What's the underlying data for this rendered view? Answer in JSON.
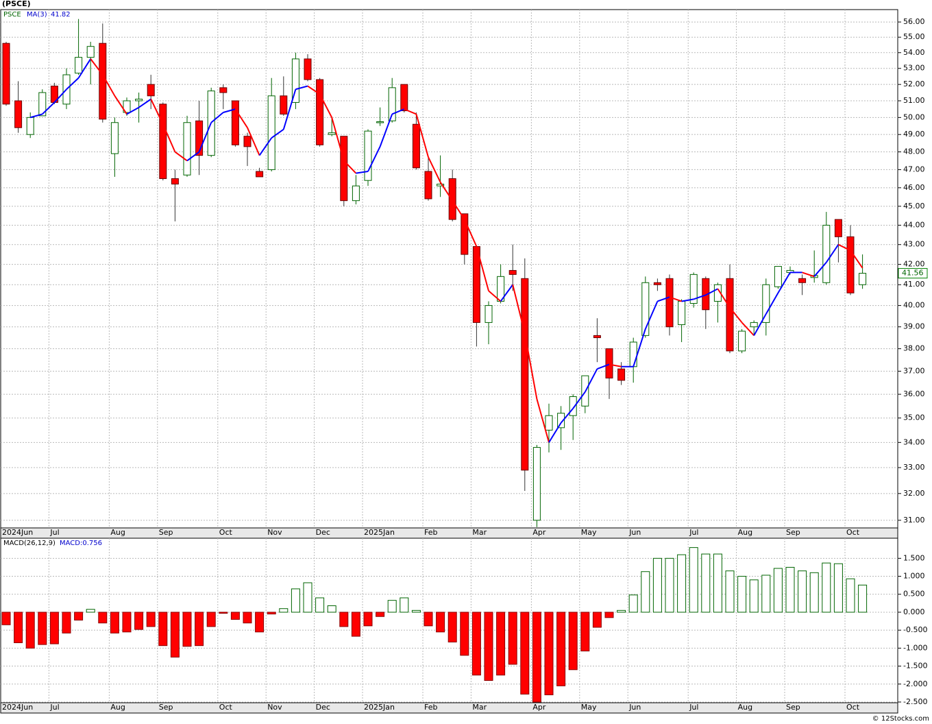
{
  "chart_data": [
    {
      "type": "candlestick",
      "title": "(PSCE)",
      "symbol": "PSCE",
      "log_scale": true,
      "grid": true,
      "up_color": "#006400",
      "down_color": "#ff0000",
      "categories": [
        "2024Jun",
        null,
        null,
        null,
        "Jul",
        null,
        null,
        null,
        null,
        "Aug",
        null,
        null,
        null,
        "Sep",
        null,
        null,
        null,
        null,
        "Oct",
        null,
        null,
        null,
        "Nov",
        null,
        null,
        null,
        "Dec",
        null,
        null,
        null,
        "2025Jan",
        null,
        null,
        null,
        null,
        "Feb",
        null,
        null,
        null,
        "Mar",
        null,
        null,
        null,
        null,
        "Apr",
        null,
        null,
        null,
        "May",
        null,
        null,
        null,
        "Jun",
        null,
        null,
        null,
        null,
        "Jul",
        null,
        null,
        null,
        "Aug",
        null,
        null,
        null,
        "Sep",
        null,
        null,
        null,
        null,
        "Oct",
        null
      ],
      "open": [
        54.6,
        51.0,
        49.0,
        50.1,
        51.9,
        50.8,
        52.7,
        53.7,
        54.6,
        47.9,
        50.3,
        51.0,
        52.0,
        50.8,
        46.5,
        46.7,
        49.8,
        47.8,
        51.8,
        51.0,
        48.9,
        46.9,
        47.0,
        51.3,
        50.9,
        53.6,
        52.3,
        49.0,
        48.9,
        45.3,
        46.4,
        49.7,
        49.8,
        52.0,
        49.6,
        46.9,
        46.1,
        46.5,
        44.6,
        42.9,
        39.2,
        40.2,
        41.7,
        41.3,
        31.0,
        34.5,
        34.6,
        35.1,
        35.5,
        38.6,
        38.0,
        37.1,
        37.2,
        38.6,
        41.1,
        41.3,
        39.1,
        40.1,
        41.3,
        40.2,
        41.3,
        37.9,
        39.0,
        39.2,
        40.9,
        41.6,
        41.3,
        41.35,
        41.1,
        44.3,
        43.4,
        41.0
      ],
      "high": [
        54.7,
        52.2,
        50.3,
        51.7,
        52.1,
        53.0,
        56.2,
        54.7,
        55.9,
        50.0,
        51.2,
        51.5,
        52.6,
        50.9,
        47.0,
        50.1,
        51.0,
        51.8,
        52.0,
        51.0,
        49.1,
        47.1,
        52.4,
        52.5,
        54.0,
        53.9,
        52.4,
        50.0,
        48.9,
        46.7,
        49.3,
        50.6,
        52.4,
        52.0,
        50.3,
        47.7,
        47.8,
        47.0,
        44.6,
        42.9,
        40.2,
        42.0,
        43.0,
        42.3,
        33.9,
        35.6,
        35.5,
        36.0,
        36.8,
        39.4,
        38.0,
        37.4,
        38.5,
        41.4,
        41.3,
        41.5,
        40.3,
        41.6,
        41.4,
        41.1,
        42.0,
        38.9,
        39.3,
        41.3,
        41.9,
        41.9,
        41.5,
        42.7,
        44.7,
        44.3,
        44.0,
        42.5
      ],
      "low": [
        50.7,
        49.1,
        48.8,
        50.1,
        50.8,
        50.5,
        52.6,
        52.0,
        49.7,
        46.6,
        50.1,
        49.7,
        50.5,
        46.4,
        44.2,
        46.6,
        46.7,
        47.7,
        50.5,
        48.3,
        47.2,
        46.6,
        46.9,
        50.1,
        50.5,
        52.2,
        48.3,
        48.9,
        45.0,
        45.1,
        46.1,
        49.5,
        49.7,
        50.3,
        47.0,
        45.3,
        45.5,
        44.2,
        42.0,
        38.1,
        38.2,
        40.1,
        40.7,
        32.1,
        30.75,
        33.6,
        33.7,
        34.1,
        35.2,
        37.4,
        35.8,
        36.4,
        36.5,
        38.5,
        40.7,
        38.6,
        38.3,
        39.9,
        38.9,
        39.2,
        37.8,
        37.8,
        38.6,
        38.6,
        40.8,
        41.5,
        40.5,
        41.1,
        41.0,
        42.1,
        40.5,
        40.8
      ],
      "close": [
        50.8,
        49.4,
        50.0,
        51.5,
        50.9,
        52.6,
        53.7,
        54.4,
        49.9,
        49.7,
        51.0,
        51.1,
        51.3,
        46.5,
        46.2,
        49.7,
        47.8,
        51.6,
        51.5,
        48.4,
        48.3,
        46.6,
        51.3,
        50.2,
        53.6,
        52.3,
        48.4,
        49.1,
        45.3,
        46.1,
        49.2,
        49.75,
        51.8,
        50.4,
        47.1,
        45.4,
        46.2,
        44.3,
        42.5,
        39.2,
        40.0,
        41.4,
        41.5,
        32.9,
        33.8,
        35.1,
        35.2,
        35.9,
        36.8,
        38.5,
        36.7,
        36.6,
        38.3,
        41.1,
        41.0,
        39.0,
        40.2,
        41.5,
        39.8,
        41.0,
        37.9,
        38.8,
        39.2,
        41.0,
        41.9,
        41.7,
        41.1,
        41.45,
        44.0,
        43.4,
        40.6,
        41.56
      ],
      "ma": {
        "name": "MA(3)",
        "up_color": "#0000ff",
        "down_color": "#ff0000",
        "values": [
          null,
          null,
          50.0,
          50.2,
          50.9,
          51.7,
          52.4,
          53.6,
          52.6,
          51.3,
          50.2,
          50.6,
          51.1,
          49.6,
          48.0,
          47.5,
          48.0,
          49.7,
          50.3,
          50.5,
          49.4,
          47.8,
          48.8,
          49.3,
          51.7,
          51.9,
          51.4,
          50.0,
          47.5,
          46.8,
          46.9,
          48.3,
          50.2,
          50.5,
          50.2,
          47.7,
          46.3,
          45.3,
          44.3,
          42.9,
          40.7,
          40.2,
          41.0,
          38.7,
          35.8,
          34.0,
          34.8,
          35.4,
          36.1,
          37.1,
          37.3,
          37.2,
          37.2,
          38.9,
          40.2,
          40.4,
          40.2,
          40.3,
          40.5,
          40.8,
          39.9,
          39.2,
          38.6,
          39.6,
          40.6,
          41.6,
          41.6,
          41.4,
          42.1,
          43.0,
          42.7,
          41.82
        ]
      },
      "ylim": [
        30.72,
        56.83
      ],
      "yticks": [
        {
          "value": 31,
          "label": "31.00"
        },
        {
          "value": 32,
          "label": "32.00"
        },
        {
          "value": 33,
          "label": "33.00"
        },
        {
          "value": 34,
          "label": "34.00"
        },
        {
          "value": 35,
          "label": "35.00"
        },
        {
          "value": 36,
          "label": "36.00"
        },
        {
          "value": 37,
          "label": "37.00"
        },
        {
          "value": 38,
          "label": "38.00"
        },
        {
          "value": 39,
          "label": "39.00"
        },
        {
          "value": 40,
          "label": "40.00"
        },
        {
          "value": 41,
          "label": "41.00"
        },
        {
          "value": 42,
          "label": "42.00"
        },
        {
          "value": 43,
          "label": "43.00"
        },
        {
          "value": 44,
          "label": "44.00"
        },
        {
          "value": 45,
          "label": "45.00"
        },
        {
          "value": 46,
          "label": "46.00"
        },
        {
          "value": 47,
          "label": "47.00"
        },
        {
          "value": 48,
          "label": "48.00"
        },
        {
          "value": 49,
          "label": "49.00"
        },
        {
          "value": 50,
          "label": "50.00"
        },
        {
          "value": 51,
          "label": "51.00"
        },
        {
          "value": 52,
          "label": "52.00"
        },
        {
          "value": 53,
          "label": "53.00"
        },
        {
          "value": 54,
          "label": "54.00"
        },
        {
          "value": 55,
          "label": "55.00"
        },
        {
          "value": 56,
          "label": "56.00"
        }
      ]
    },
    {
      "type": "bar",
      "title": "MACD(26,12,9)",
      "macd_label": "MACD:0.756",
      "grid": true,
      "up_color": "#006400",
      "down_color": "#ff0000",
      "categories": [
        "2024Jun",
        null,
        null,
        null,
        "Jul",
        null,
        null,
        null,
        null,
        "Aug",
        null,
        null,
        null,
        "Sep",
        null,
        null,
        null,
        null,
        "Oct",
        null,
        null,
        null,
        "Nov",
        null,
        null,
        null,
        "Dec",
        null,
        null,
        null,
        "2025Jan",
        null,
        null,
        null,
        null,
        "Feb",
        null,
        null,
        null,
        "Mar",
        null,
        null,
        null,
        null,
        "Apr",
        null,
        null,
        null,
        "May",
        null,
        null,
        null,
        "Jun",
        null,
        null,
        null,
        null,
        "Jul",
        null,
        null,
        null,
        "Aug",
        null,
        null,
        null,
        "Sep",
        null,
        null,
        null,
        null,
        "Oct",
        null
      ],
      "values": [
        -0.35,
        -0.85,
        -1.0,
        -0.9,
        -0.88,
        -0.58,
        -0.22,
        0.08,
        -0.3,
        -0.58,
        -0.55,
        -0.48,
        -0.4,
        -0.93,
        -1.25,
        -0.95,
        -0.93,
        -0.4,
        -0.03,
        -0.2,
        -0.3,
        -0.55,
        -0.05,
        0.1,
        0.65,
        0.82,
        0.4,
        0.18,
        -0.4,
        -0.67,
        -0.38,
        -0.12,
        0.33,
        0.4,
        0.05,
        -0.38,
        -0.55,
        -0.83,
        -1.2,
        -1.75,
        -1.9,
        -1.75,
        -1.45,
        -2.28,
        -2.5,
        -2.3,
        -2.05,
        -1.6,
        -1.08,
        -0.42,
        -0.15,
        0.05,
        0.48,
        1.13,
        1.5,
        1.5,
        1.6,
        1.8,
        1.62,
        1.62,
        1.15,
        1.0,
        0.9,
        1.03,
        1.22,
        1.25,
        1.15,
        1.1,
        1.37,
        1.35,
        0.93,
        0.756
      ],
      "ylim": [
        -2.52,
        2.06
      ],
      "yticks": [
        {
          "value": -2.5,
          "label": "-2.500"
        },
        {
          "value": -2,
          "label": "-2.000"
        },
        {
          "value": -1.5,
          "label": "-1.500"
        },
        {
          "value": -1,
          "label": "-1.000"
        },
        {
          "value": -0.5,
          "label": "-0.500"
        },
        {
          "value": 0,
          "label": "0.000"
        },
        {
          "value": 0.5,
          "label": "0.500"
        },
        {
          "value": 1,
          "label": "1.000"
        },
        {
          "value": 1.5,
          "label": "1.500"
        }
      ]
    }
  ],
  "footer": "© 12Stocks.com"
}
